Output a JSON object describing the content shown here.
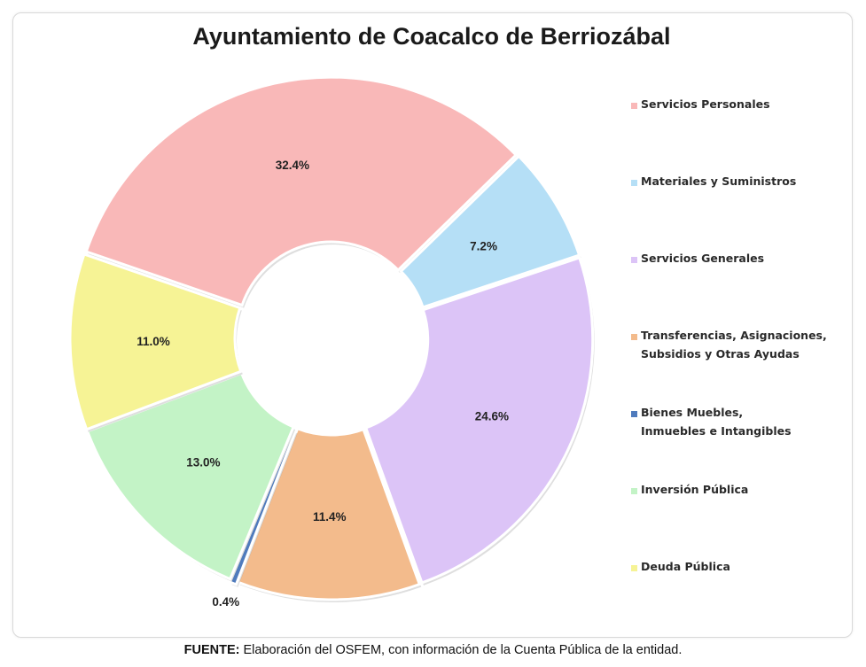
{
  "footer": {
    "source_label": "FUENTE:",
    "source_text": " Elaboración del OSFEM, con información de la Cuenta Pública de la entidad."
  },
  "chart_data": {
    "type": "pie",
    "title": "Ayuntamiento de Coacalco de Berriozábal",
    "legend_position": "right",
    "slices": [
      {
        "label": "Servicios Personales",
        "value": 32.4,
        "value_label": "32.4%",
        "color": "#f9b8b8"
      },
      {
        "label": "Materiales y Suministros",
        "value": 7.2,
        "value_label": "7.2%",
        "color": "#b5dff6"
      },
      {
        "label": "Servicios Generales",
        "value": 24.6,
        "value_label": "24.6%",
        "color": "#dcc4f7"
      },
      {
        "label": "Transferencias, Asignaciones,\nSubsidios y Otras Ayudas",
        "value": 11.4,
        "value_label": "11.4%",
        "color": "#f3bb8c"
      },
      {
        "label": "Bienes Muebles,\nInmuebles e Intangibles",
        "value": 0.4,
        "value_label": "0.4%",
        "color": "#4f7bbd"
      },
      {
        "label": "Inversión Pública",
        "value": 13.0,
        "value_label": "13.0%",
        "color": "#c3f3c6"
      },
      {
        "label": "Deuda Pública",
        "value": 11.0,
        "value_label": "11.0%",
        "color": "#f6f395"
      }
    ]
  }
}
